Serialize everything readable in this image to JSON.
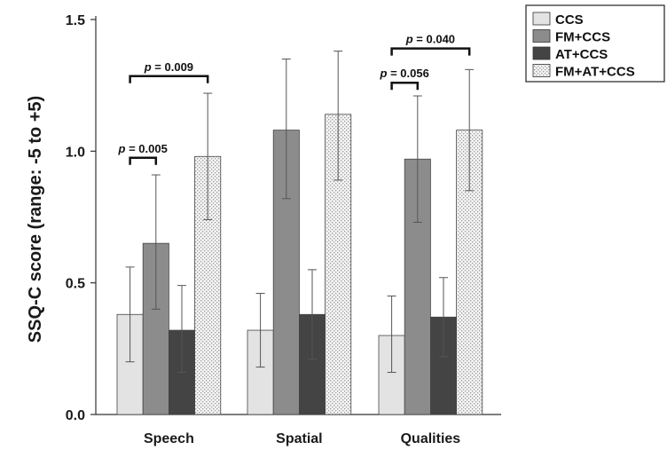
{
  "chart_data": {
    "type": "bar",
    "ylabel": "SSQ-C score (range: -5 to +5)",
    "xlabel": "",
    "ylim": [
      0,
      1.5
    ],
    "yticks": [
      "0.0",
      "0.5",
      "1.0",
      "1.5"
    ],
    "categories": [
      "Speech",
      "Spatial",
      "Qualities"
    ],
    "legend_position": "top-right",
    "series": [
      {
        "name": "CCS",
        "color": "#e3e3e3",
        "pattern": "solid",
        "values": [
          0.38,
          0.32,
          0.3
        ],
        "err_low": [
          0.2,
          0.18,
          0.16
        ],
        "err_high": [
          0.56,
          0.46,
          0.45
        ]
      },
      {
        "name": "FM+CCS",
        "color": "#8c8c8c",
        "pattern": "solid",
        "values": [
          0.65,
          1.08,
          0.97
        ],
        "err_low": [
          0.4,
          0.82,
          0.73
        ],
        "err_high": [
          0.91,
          1.35,
          1.21
        ]
      },
      {
        "name": "AT+CCS",
        "color": "#444444",
        "pattern": "solid",
        "values": [
          0.32,
          0.38,
          0.37
        ],
        "err_low": [
          0.16,
          0.21,
          0.22
        ],
        "err_high": [
          0.49,
          0.55,
          0.52
        ]
      },
      {
        "name": "FM+AT+CCS",
        "color": "#f4f4f4",
        "pattern": "dotted",
        "values": [
          0.98,
          1.14,
          1.08
        ],
        "err_low": [
          0.74,
          0.89,
          0.85
        ],
        "err_high": [
          1.22,
          1.38,
          1.31
        ]
      }
    ],
    "annotations": [
      {
        "prefix": "p",
        "text": " = 0.005",
        "category": 0,
        "from_series": 0,
        "to_series": 1,
        "level": 0.975
      },
      {
        "prefix": "p",
        "text": " = 0.009",
        "category": 0,
        "from_series": 0,
        "to_series": 3,
        "level": 1.285
      },
      {
        "prefix": "p",
        "text": " = 0.056",
        "category": 2,
        "from_series": 0,
        "to_series": 1,
        "level": 1.26
      },
      {
        "prefix": "p",
        "text": " = 0.040",
        "category": 2,
        "from_series": 0,
        "to_series": 3,
        "level": 1.39
      }
    ]
  }
}
